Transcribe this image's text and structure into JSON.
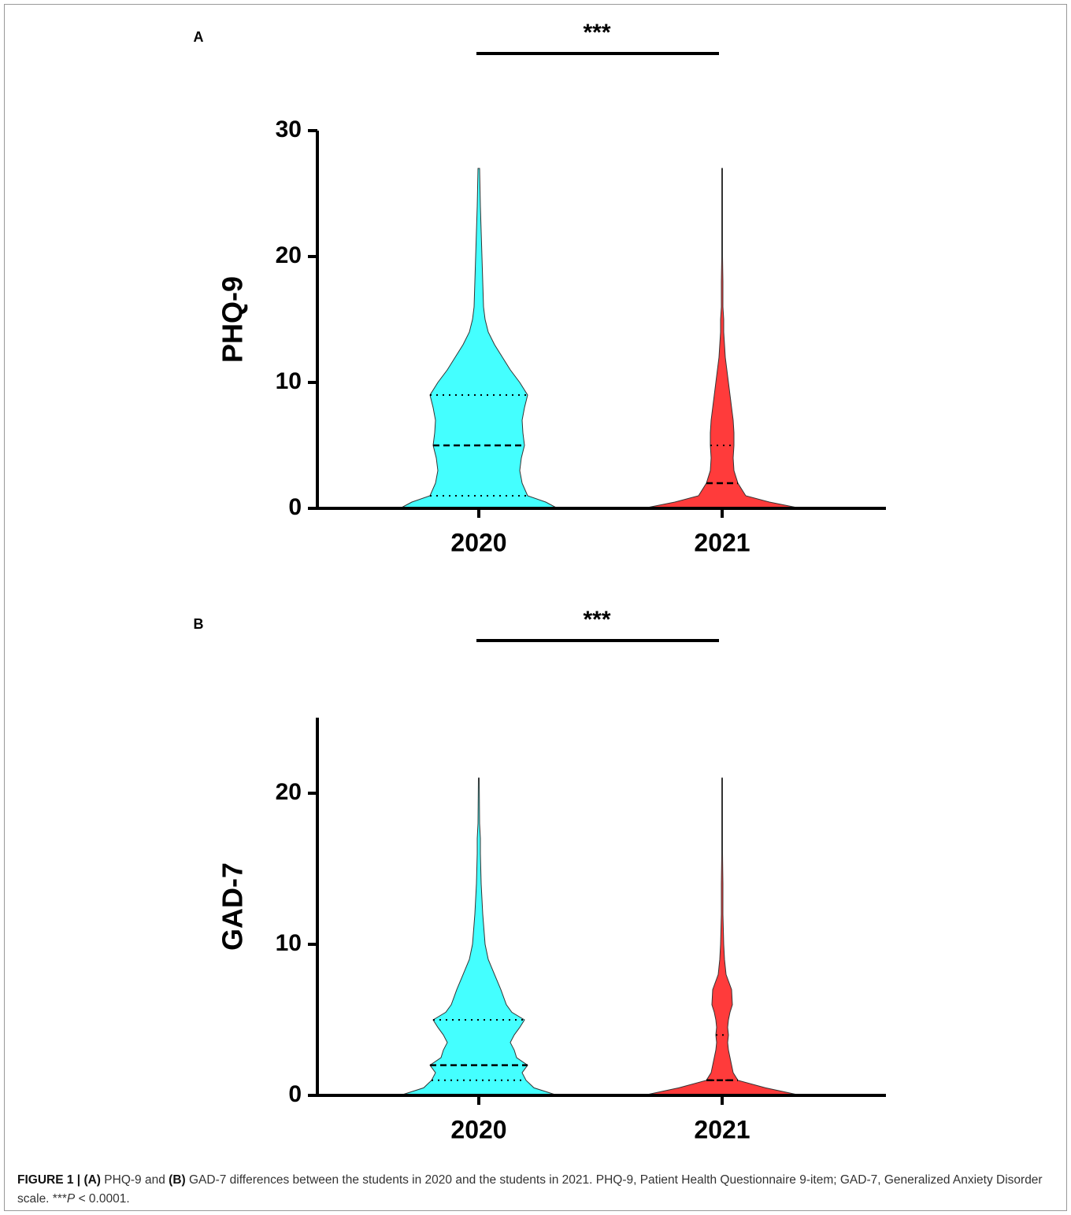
{
  "chart_data": [
    {
      "type": "violin",
      "panel": "A",
      "ylabel": "PHQ-9",
      "significance": "***",
      "categories": [
        "2020",
        "2021"
      ],
      "ylim": [
        0,
        30
      ],
      "yticks": [
        0,
        10,
        20,
        30
      ],
      "density_y": [
        0,
        0.5,
        1,
        2,
        3,
        4,
        5,
        6,
        7,
        8,
        9,
        10,
        11,
        12,
        13,
        14,
        15,
        16,
        18,
        20,
        22,
        24,
        27
      ],
      "series": [
        {
          "color": "#44ffff",
          "max": 27,
          "q1": 1,
          "median": 5,
          "q3": 9,
          "density": [
            1.0,
            0.85,
            0.62,
            0.55,
            0.52,
            0.54,
            0.58,
            0.56,
            0.55,
            0.58,
            0.62,
            0.52,
            0.4,
            0.3,
            0.2,
            0.12,
            0.08,
            0.06,
            0.05,
            0.04,
            0.03,
            0.02,
            0.01
          ]
        },
        {
          "color": "#ff3b3b",
          "max": 27,
          "q1": 0,
          "median": 2,
          "q3": 5,
          "density": [
            1.0,
            0.6,
            0.3,
            0.2,
            0.15,
            0.14,
            0.15,
            0.15,
            0.14,
            0.12,
            0.1,
            0.08,
            0.06,
            0.04,
            0.03,
            0.02,
            0.02,
            0.01,
            0.01,
            0.005,
            0.005,
            0.005,
            0.005
          ]
        }
      ]
    },
    {
      "type": "violin",
      "panel": "B",
      "ylabel": "GAD-7",
      "significance": "***",
      "categories": [
        "2020",
        "2021"
      ],
      "ylim": [
        0,
        25
      ],
      "yticks": [
        0,
        10,
        20
      ],
      "density_y": [
        0,
        0.5,
        1,
        1.5,
        2,
        2.5,
        3,
        3.5,
        4,
        4.5,
        5,
        5.5,
        6,
        7,
        8,
        9,
        10,
        12,
        14,
        16,
        17,
        18,
        21
      ],
      "series": [
        {
          "color": "#44ffff",
          "max": 21,
          "q1": 1,
          "median": 2,
          "q3": 5,
          "density": [
            1.0,
            0.7,
            0.6,
            0.55,
            0.62,
            0.48,
            0.45,
            0.4,
            0.45,
            0.52,
            0.58,
            0.42,
            0.35,
            0.28,
            0.2,
            0.12,
            0.08,
            0.05,
            0.03,
            0.02,
            0.02,
            0.01,
            0.005
          ]
        },
        {
          "color": "#ff3b3b",
          "max": 21,
          "q1": 1,
          "median": 1,
          "q3": 4,
          "density": [
            1.0,
            0.55,
            0.2,
            0.14,
            0.12,
            0.1,
            0.08,
            0.07,
            0.08,
            0.07,
            0.08,
            0.1,
            0.13,
            0.12,
            0.05,
            0.03,
            0.02,
            0.01,
            0.01,
            0.005,
            0.005,
            0.005,
            0.005
          ]
        }
      ]
    }
  ],
  "caption": {
    "figure": "FIGURE 1 |",
    "a": "(A)",
    "text1": "PHQ-9 and",
    "b": "(B)",
    "text2": "GAD-7 differences between the students in 2020 and the students in 2021. PHQ-9, Patient Health Questionnaire 9-item; GAD-7, Generalized Anxiety Disorder scale. ***",
    "p": "P",
    "text3": "< 0.0001."
  }
}
